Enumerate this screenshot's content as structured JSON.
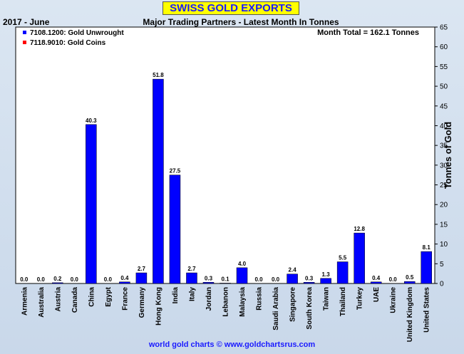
{
  "header": {
    "title": "SWISS GOLD EXPORTS",
    "period": "2017 - June",
    "subtitle": "Major Trading Partners - Latest Month In Tonnes",
    "month_total": "Month Total = 162.1 Tonnes"
  },
  "footer": {
    "credit": "world gold charts © www.goldchartsrus.com"
  },
  "colors": {
    "unwrought": "#0000ff",
    "coins": "#ff0000",
    "panel_bg": "#c9d8ea",
    "title_bg": "#ffff00"
  },
  "chart_data": {
    "type": "bar",
    "title": "SWISS GOLD EXPORTS",
    "ylabel": "Tonnes of Gold",
    "ylim": [
      0,
      65
    ],
    "yticks": [
      0,
      5,
      10,
      15,
      20,
      25,
      30,
      35,
      40,
      45,
      50,
      55,
      60,
      65
    ],
    "y_axis_side": "right",
    "grid": false,
    "legend_position": "top-left",
    "categories": [
      "Armenia",
      "Australia",
      "Austria",
      "Canada",
      "China",
      "Egypt",
      "France",
      "Germany",
      "Hong Kong",
      "India",
      "Italy",
      "Jordan",
      "Lebanon",
      "Malaysia",
      "Russia",
      "Saudi Arabia",
      "Singapore",
      "South Korea",
      "Taiwan",
      "Thailand",
      "Turkey",
      "UAE",
      "Ukraine",
      "United Kingdom",
      "United States"
    ],
    "value_labels": [
      "0.0",
      "0.0",
      "0.2",
      "0.0",
      "40.3",
      "0.0",
      "0.4",
      "2.7",
      "51.8",
      "27.5",
      "2.7",
      "0.3",
      "0.1",
      "4.0",
      "0.0",
      "0.0",
      "2.4",
      "0.3",
      "1.3",
      "5.5",
      "12.8",
      "0.4",
      "0.0",
      "0.5",
      "8.1"
    ],
    "series": [
      {
        "name": "7108.1200: Gold Unwrought",
        "color": "#0000ff",
        "values": [
          0.0,
          0.0,
          0.2,
          0.0,
          40.3,
          0.0,
          0.4,
          2.7,
          51.8,
          27.5,
          2.7,
          0.3,
          0.1,
          4.0,
          0.0,
          0.0,
          2.4,
          0.3,
          1.3,
          5.5,
          12.8,
          0.4,
          0.0,
          0.5,
          8.1
        ]
      },
      {
        "name": "7118.9010: Gold Coins",
        "color": "#ff0000",
        "values": [
          0,
          0,
          0,
          0,
          0,
          0,
          0,
          0,
          0,
          0,
          0,
          0,
          0,
          0,
          0,
          0,
          0,
          0,
          0,
          0,
          0,
          0,
          0,
          0,
          0
        ]
      }
    ]
  }
}
